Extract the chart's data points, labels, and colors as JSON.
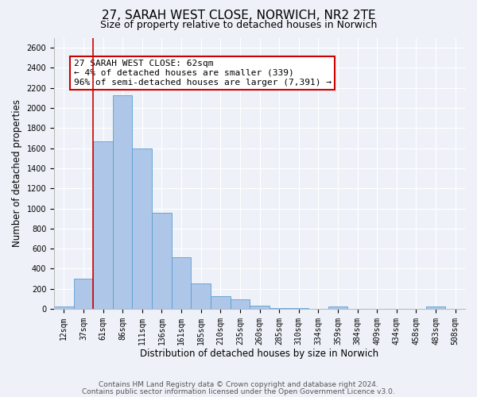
{
  "title": "27, SARAH WEST CLOSE, NORWICH, NR2 2TE",
  "subtitle": "Size of property relative to detached houses in Norwich",
  "xlabel": "Distribution of detached houses by size in Norwich",
  "ylabel": "Number of detached properties",
  "bin_labels": [
    "12sqm",
    "37sqm",
    "61sqm",
    "86sqm",
    "111sqm",
    "136sqm",
    "161sqm",
    "185sqm",
    "210sqm",
    "235sqm",
    "260sqm",
    "285sqm",
    "310sqm",
    "334sqm",
    "359sqm",
    "384sqm",
    "409sqm",
    "434sqm",
    "458sqm",
    "483sqm",
    "508sqm"
  ],
  "bar_values": [
    20,
    300,
    1670,
    2130,
    1600,
    960,
    510,
    255,
    125,
    95,
    30,
    5,
    5,
    0,
    20,
    0,
    0,
    0,
    0,
    20,
    0
  ],
  "bar_color": "#aec6e8",
  "bar_edgecolor": "#5a9fd4",
  "vline_x_idx": 2,
  "vline_color": "#cc0000",
  "annotation_text": "27 SARAH WEST CLOSE: 62sqm\n← 4% of detached houses are smaller (339)\n96% of semi-detached houses are larger (7,391) →",
  "annotation_box_color": "#ffffff",
  "annotation_box_edgecolor": "#cc0000",
  "ylim": [
    0,
    2700
  ],
  "yticks": [
    0,
    200,
    400,
    600,
    800,
    1000,
    1200,
    1400,
    1600,
    1800,
    2000,
    2200,
    2400,
    2600
  ],
  "footer1": "Contains HM Land Registry data © Crown copyright and database right 2024.",
  "footer2": "Contains public sector information licensed under the Open Government Licence v3.0.",
  "background_color": "#eef2f8",
  "plot_background": "#eef2f8",
  "grid_color": "#ffffff",
  "title_fontsize": 11,
  "subtitle_fontsize": 9,
  "axis_label_fontsize": 8.5,
  "tick_fontsize": 7,
  "footer_fontsize": 6.5,
  "annotation_fontsize": 8
}
